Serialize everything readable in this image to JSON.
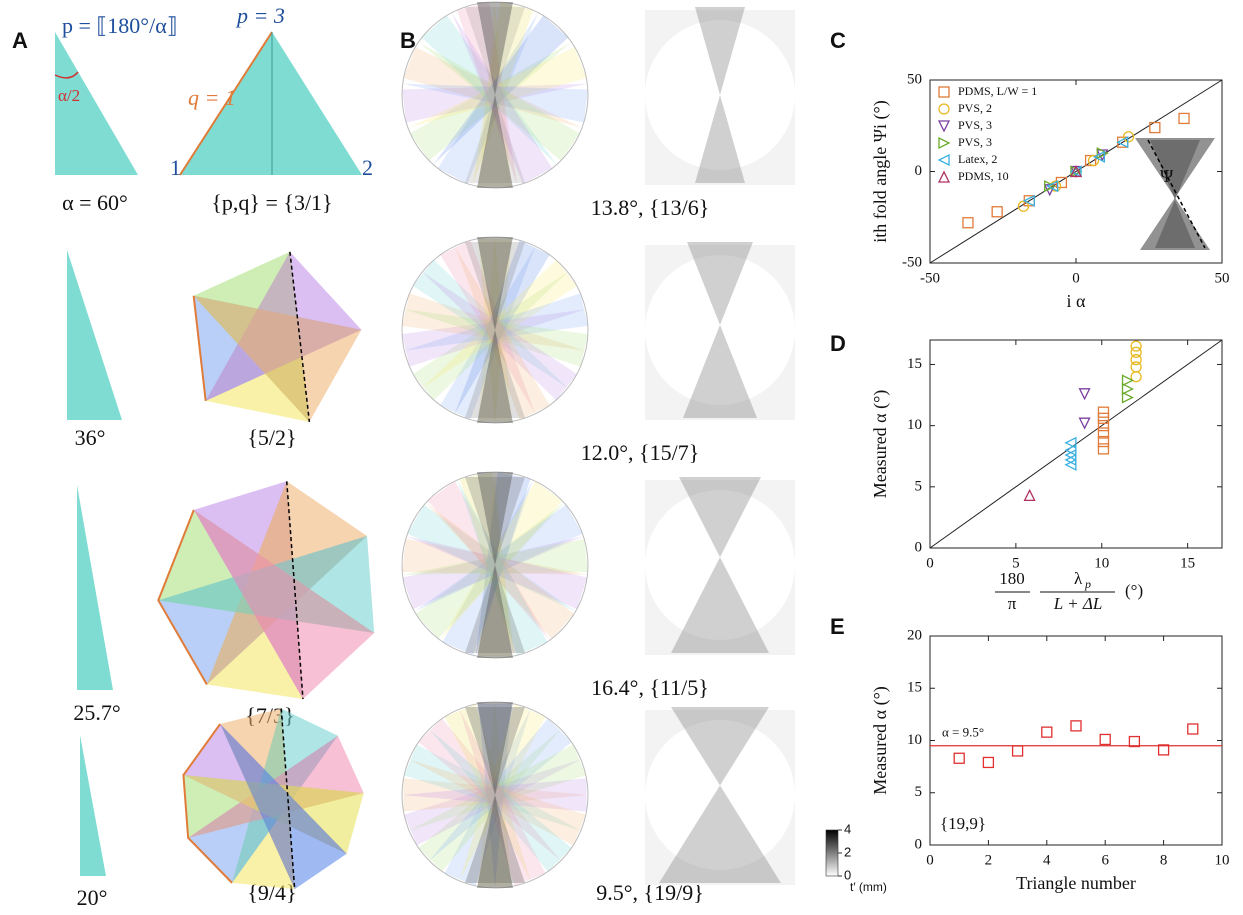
{
  "panel_labels": [
    "A",
    "B",
    "C",
    "D",
    "E"
  ],
  "panel_a": {
    "formula": "p = ⟦180°/α⟧",
    "p_label": "p = 3",
    "half_angle": "α/2",
    "q_label": "q = 1",
    "vertex_1": "1",
    "vertex_2": "2",
    "rows": [
      {
        "angle": "α = 60°",
        "symbol": "{p,q} = {3/1}"
      },
      {
        "angle": "36°",
        "symbol": "{5/2}"
      },
      {
        "angle": "25.7°",
        "symbol": "{7/3}"
      },
      {
        "angle": "20°",
        "symbol": "{9/4}"
      }
    ]
  },
  "panel_b": {
    "captions": [
      "13.8°, {13/6}",
      "12.0°, {15/7}",
      "16.4°, {11/5}",
      "9.5°, {19/9}"
    ],
    "colorbar": {
      "label": "t′ (mm)",
      "lim": [
        0,
        4
      ],
      "ticks": [
        0,
        2,
        4
      ]
    }
  },
  "chart_data": [
    {
      "type": "scatter",
      "xlabel": "i α",
      "ylabel": "ith fold angle Ψi (°)",
      "inset_label": "Ψ",
      "xlim": [
        -50,
        50
      ],
      "ylim": [
        -50,
        50
      ],
      "xticks": [
        -50,
        0,
        50
      ],
      "yticks": [
        -50,
        0,
        50
      ],
      "legend": "upper left",
      "series": [
        {
          "name": "PDMS, L/W = 1",
          "color": "#e07b39",
          "marker": "square",
          "x": [
            -37,
            -27,
            -16,
            -5,
            5,
            16,
            27,
            37
          ],
          "values": [
            -28,
            -22,
            -16,
            -6,
            6,
            16,
            24,
            29
          ]
        },
        {
          "name": "PVS, 2",
          "color": "#e8b820",
          "marker": "circle",
          "x": [
            -18,
            -7,
            6,
            18
          ],
          "values": [
            -19,
            -8,
            6,
            19
          ]
        },
        {
          "name": "PVS, 3",
          "color": "#7b3fa0",
          "marker": "triangle-down",
          "x": [
            -9,
            0,
            9
          ],
          "values": [
            -10,
            0,
            9
          ]
        },
        {
          "name": "PVS, 3",
          "color": "#6aaa2a",
          "marker": "triangle-right",
          "x": [
            -9,
            0,
            9
          ],
          "values": [
            -8,
            0,
            10
          ]
        },
        {
          "name": "Latex, 2",
          "color": "#3ab0e0",
          "marker": "triangle-left",
          "x": [
            -16,
            -8,
            0,
            8,
            16
          ],
          "values": [
            -16,
            -8,
            0,
            8,
            16
          ]
        },
        {
          "name": "PDMS, 10",
          "color": "#b03060",
          "marker": "triangle-up",
          "x": [
            0
          ],
          "values": [
            0
          ]
        }
      ]
    },
    {
      "type": "scatter",
      "ylabel": "Measured α (°)",
      "xlabel_parts": [
        "180",
        "π",
        "λ",
        "p",
        "L + ΔL",
        "(°)"
      ],
      "xlim": [
        0,
        17
      ],
      "ylim": [
        0,
        17
      ],
      "xticks": [
        0,
        5,
        10,
        15
      ],
      "yticks": [
        0,
        5,
        10,
        15
      ],
      "series": [
        {
          "color": "#e07b39",
          "marker": "square",
          "x": [
            10.1,
            10.1,
            10.1,
            10.1,
            10.1,
            10.1
          ],
          "values": [
            8.1,
            8.7,
            9.4,
            10,
            10.6,
            11.1
          ]
        },
        {
          "color": "#e8b820",
          "marker": "circle",
          "x": [
            12,
            12,
            12,
            12,
            12
          ],
          "values": [
            14,
            14.8,
            15.4,
            16,
            16.5
          ]
        },
        {
          "color": "#7b3fa0",
          "marker": "triangle-down",
          "x": [
            9,
            9
          ],
          "values": [
            10.2,
            12.6
          ]
        },
        {
          "color": "#6aaa2a",
          "marker": "triangle-right",
          "x": [
            11.5,
            11.5,
            11.5
          ],
          "values": [
            12.3,
            13,
            13.7
          ]
        },
        {
          "color": "#3ab0e0",
          "marker": "triangle-left",
          "x": [
            8.2,
            8.2,
            8.2,
            8.2,
            8.2
          ],
          "values": [
            6.8,
            7.2,
            7.6,
            8,
            8.6
          ]
        },
        {
          "color": "#b03060",
          "marker": "triangle-up",
          "x": [
            5.8
          ],
          "values": [
            4.3
          ]
        }
      ]
    },
    {
      "type": "scatter",
      "xlabel": "Triangle number",
      "ylabel": "Measured α (°)",
      "annotation": "{19,9}",
      "xlim": [
        0,
        10
      ],
      "ylim": [
        0,
        20
      ],
      "xticks": [
        0,
        2,
        4,
        6,
        8,
        10
      ],
      "yticks": [
        0,
        5,
        10,
        15,
        20
      ],
      "hline": {
        "value": 9.5,
        "label": "α = 9.5°",
        "color": "#e03030"
      },
      "color": "#e03030",
      "marker": "square",
      "x": [
        1,
        2,
        3,
        4,
        5,
        6,
        7,
        8,
        9
      ],
      "values": [
        8.3,
        7.9,
        9,
        10.8,
        11.4,
        10.1,
        9.9,
        9.1,
        11.1
      ]
    }
  ]
}
